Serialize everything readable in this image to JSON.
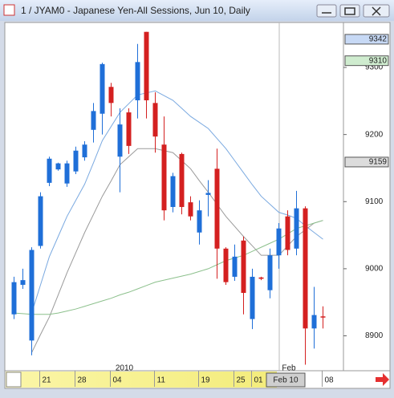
{
  "chart_data": {
    "type": "candlestick",
    "title": "1 / JYAM0 - Japanese Yen-All Sessions, Jun 10, Daily",
    "up_color": "#1f6fd8",
    "down_color": "#d42020",
    "ylim": [
      8848,
      9367
    ],
    "yticks": [
      8900,
      9000,
      9100,
      9200,
      9300
    ],
    "price_markers": [
      {
        "value": 9342,
        "color": "#c7d9f5"
      },
      {
        "value": 9310,
        "color": "#cfeccf"
      },
      {
        "value": 9159,
        "color": "#dcdcdc"
      }
    ],
    "categories": [
      null,
      null,
      null,
      "21",
      null,
      null,
      null,
      "28",
      null,
      null,
      null,
      "04",
      null,
      null,
      null,
      null,
      "11",
      null,
      null,
      null,
      null,
      "19",
      null,
      null,
      null,
      "25",
      null,
      "01",
      null,
      null,
      null,
      null,
      null,
      null,
      null,
      "08"
    ],
    "period_labels": [
      "2010",
      "Feb"
    ],
    "cursor_label": "Feb 10",
    "open": [
      8932,
      8976,
      8893,
      9034,
      9128,
      9148,
      9127,
      9145,
      9166,
      9207,
      9231,
      9271,
      9167,
      9233,
      9251,
      9353,
      9247,
      9185,
      9092,
      9171,
      9099,
      9054,
      9110,
      9149,
      9030,
      8988,
      9042,
      8925,
      8987,
      8968,
      9020,
      9078,
      9030,
      9090,
      8911,
      8929
    ],
    "high": [
      8988,
      9000,
      9032,
      9114,
      9167,
      9158,
      9161,
      9182,
      9190,
      9247,
      9307,
      9277,
      9239,
      9239,
      9335,
      9353,
      9263,
      9227,
      9143,
      9173,
      9108,
      9102,
      9132,
      9179,
      9032,
      9036,
      9048,
      9000,
      8988,
      9030,
      9068,
      9087,
      9116,
      9093,
      8973,
      8944
    ],
    "low": [
      8925,
      8970,
      8871,
      9030,
      9123,
      9146,
      9122,
      9141,
      9161,
      9188,
      9200,
      9227,
      9114,
      9171,
      9224,
      9224,
      9173,
      9072,
      9084,
      9081,
      9072,
      9036,
      9078,
      8985,
      8976,
      8982,
      8932,
      8910,
      8983,
      8956,
      9000,
      9020,
      9020,
      8857,
      8881,
      8911
    ],
    "close": [
      8980,
      8983,
      9028,
      9108,
      9164,
      9157,
      9157,
      9176,
      9185,
      9235,
      9305,
      9247,
      9215,
      9183,
      9308,
      9251,
      9197,
      9087,
      9138,
      9092,
      9078,
      9087,
      9113,
      9030,
      8980,
      9018,
      8964,
      8988,
      8985,
      9020,
      9060,
      9028,
      9090,
      8911,
      8931,
      8928
    ],
    "series": [
      {
        "color": "#7aa9e0",
        "values": [
          null,
          null,
          8934,
          8976,
          9018,
          9048,
          9078,
          9102,
          9126,
          9158,
          9191,
          9212,
          9233,
          9246,
          9259,
          9262,
          9265,
          9258,
          9251,
          9239,
          9227,
          9218,
          9209,
          9194,
          9179,
          9161,
          9143,
          9125,
          9108,
          9096,
          9084,
          9080,
          9075,
          9064,
          9054,
          9044
        ]
      },
      {
        "color": "#9a9a9a",
        "values": [
          null,
          null,
          8875,
          8902,
          8928,
          8961,
          8994,
          9024,
          9054,
          9081,
          9108,
          9131,
          9155,
          9167,
          9179,
          9179,
          9179,
          9176,
          9173,
          9161,
          9149,
          9131,
          9114,
          9096,
          9078,
          9063,
          9048,
          9034,
          9020,
          9020,
          9020,
          9034,
          9048,
          9058,
          9068,
          9072
        ]
      },
      {
        "color": "#8cc08c",
        "values": [
          8934,
          8933,
          8932,
          8932,
          8932,
          8934,
          8937,
          8940,
          8944,
          8948,
          8952,
          8956,
          8961,
          8965,
          8970,
          8975,
          8980,
          8983,
          8986,
          8989,
          8992,
          8996,
          9000,
          9006,
          9012,
          9016,
          9020,
          9026,
          9032,
          9038,
          9044,
          9052,
          9060,
          9064,
          9068,
          9072
        ]
      }
    ]
  }
}
